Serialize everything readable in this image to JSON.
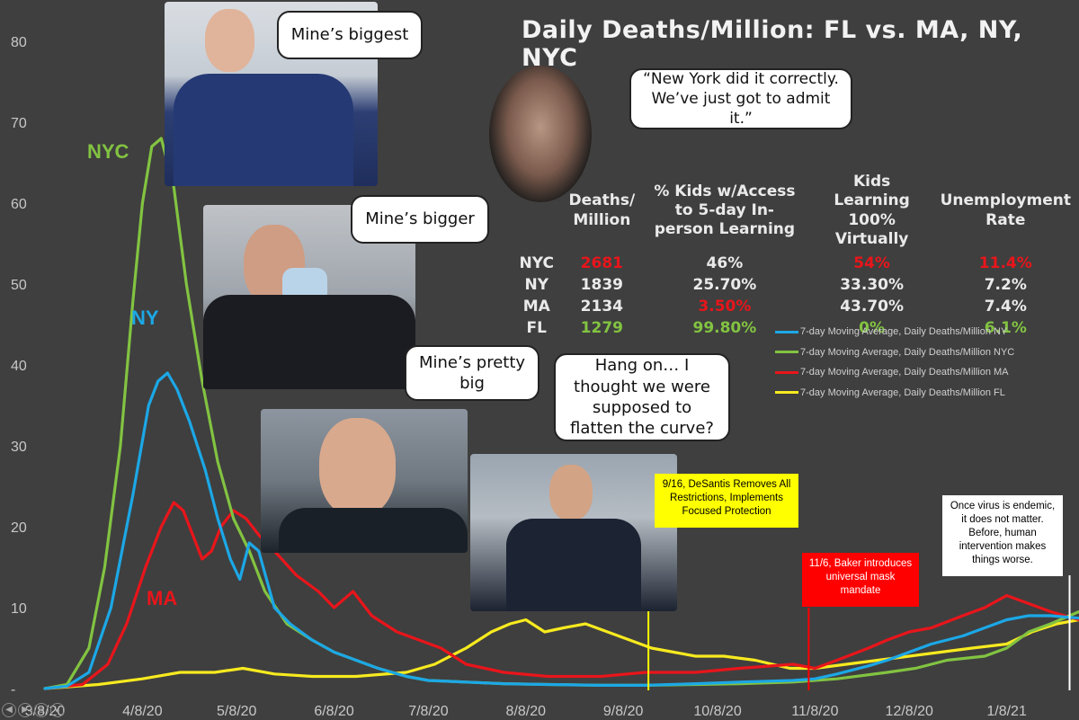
{
  "chart_data": {
    "type": "line",
    "title": "Daily Deaths/Million: FL vs. MA, NY, NYC",
    "xlabel": "",
    "ylabel": "",
    "ylim": [
      0,
      80
    ],
    "yticks": [
      0,
      10,
      20,
      30,
      40,
      50,
      60,
      70,
      80
    ],
    "ytick_labels": [
      "-",
      "10",
      "20",
      "30",
      "40",
      "50",
      "60",
      "70",
      "80"
    ],
    "xlim": [
      "2020-03-08",
      "2021-01-31"
    ],
    "xticks": [
      "2020-03-08",
      "2020-04-08",
      "2020-05-08",
      "2020-06-08",
      "2020-07-08",
      "2020-08-08",
      "2020-09-08",
      "2020-10-08",
      "2020-11-08",
      "2020-12-08",
      "2021-01-08"
    ],
    "xtick_labels": [
      "3/8/20",
      "4/8/20",
      "5/8/20",
      "6/8/20",
      "7/8/20",
      "8/8/20",
      "9/8/20",
      "10/8/20",
      "11/8/20",
      "12/8/20",
      "1/8/21"
    ],
    "grid": false,
    "legend_position": "right",
    "series": [
      {
        "name": "7-day Moving Average, Daily Deaths/Million NY",
        "label": "NY",
        "color": "#1ca7e6",
        "x": [
          "2020-03-08",
          "2020-03-15",
          "2020-03-22",
          "2020-03-29",
          "2020-04-05",
          "2020-04-10",
          "2020-04-13",
          "2020-04-16",
          "2020-04-19",
          "2020-04-23",
          "2020-04-28",
          "2020-05-02",
          "2020-05-06",
          "2020-05-09",
          "2020-05-12",
          "2020-05-15",
          "2020-05-20",
          "2020-05-25",
          "2020-06-01",
          "2020-06-08",
          "2020-06-15",
          "2020-06-22",
          "2020-07-01",
          "2020-07-08",
          "2020-07-20",
          "2020-08-01",
          "2020-08-15",
          "2020-09-01",
          "2020-09-15",
          "2020-10-01",
          "2020-10-15",
          "2020-11-01",
          "2020-11-08",
          "2020-11-15",
          "2020-11-25",
          "2020-12-01",
          "2020-12-08",
          "2020-12-15",
          "2020-12-25",
          "2021-01-01",
          "2021-01-08",
          "2021-01-15",
          "2021-01-22",
          "2021-01-31"
        ],
        "y": [
          0,
          0.3,
          2,
          10,
          24,
          35,
          38,
          39,
          37,
          33,
          27,
          21,
          16,
          13.5,
          18,
          17,
          10,
          8,
          6,
          4.5,
          3.5,
          2.5,
          1.5,
          1,
          0.8,
          0.6,
          0.5,
          0.4,
          0.4,
          0.6,
          0.8,
          1,
          1.2,
          1.8,
          2.8,
          3.5,
          4.5,
          5.5,
          6.5,
          7.5,
          8.5,
          9,
          9,
          8.7
        ]
      },
      {
        "name": "7-day Moving Average, Daily Deaths/Million NYC",
        "label": "NYC",
        "color": "#82c341",
        "x": [
          "2020-03-08",
          "2020-03-15",
          "2020-03-22",
          "2020-03-27",
          "2020-04-01",
          "2020-04-05",
          "2020-04-08",
          "2020-04-11",
          "2020-04-14",
          "2020-04-18",
          "2020-04-22",
          "2020-04-27",
          "2020-05-02",
          "2020-05-07",
          "2020-05-12",
          "2020-05-17",
          "2020-05-24",
          "2020-06-01",
          "2020-06-08",
          "2020-06-15",
          "2020-06-22",
          "2020-07-01",
          "2020-07-08",
          "2020-07-20",
          "2020-08-01",
          "2020-08-15",
          "2020-09-01",
          "2020-09-15",
          "2020-10-01",
          "2020-10-15",
          "2020-11-01",
          "2020-11-15",
          "2020-12-01",
          "2020-12-10",
          "2020-12-20",
          "2021-01-01",
          "2021-01-08",
          "2021-01-15",
          "2021-01-22",
          "2021-01-31"
        ],
        "y": [
          0,
          0.5,
          5,
          15,
          30,
          48,
          60,
          67,
          68,
          62,
          50,
          38,
          28,
          21,
          17,
          12,
          8,
          6,
          4.5,
          3.5,
          2.5,
          1.5,
          1,
          0.8,
          0.6,
          0.5,
          0.4,
          0.4,
          0.5,
          0.6,
          0.8,
          1.2,
          2,
          2.5,
          3.5,
          4,
          5,
          7,
          8,
          9.5
        ]
      },
      {
        "name": "7-day Moving Average, Daily Deaths/Million MA",
        "label": "MA",
        "color": "#e8151b",
        "x": [
          "2020-03-08",
          "2020-03-20",
          "2020-03-28",
          "2020-04-03",
          "2020-04-09",
          "2020-04-14",
          "2020-04-18",
          "2020-04-21",
          "2020-04-24",
          "2020-04-27",
          "2020-04-30",
          "2020-05-03",
          "2020-05-07",
          "2020-05-11",
          "2020-05-15",
          "2020-05-20",
          "2020-05-27",
          "2020-06-03",
          "2020-06-08",
          "2020-06-14",
          "2020-06-20",
          "2020-06-28",
          "2020-07-05",
          "2020-07-12",
          "2020-07-20",
          "2020-08-01",
          "2020-08-15",
          "2020-09-01",
          "2020-09-15",
          "2020-10-01",
          "2020-10-15",
          "2020-11-01",
          "2020-11-08",
          "2020-11-15",
          "2020-11-25",
          "2020-12-01",
          "2020-12-08",
          "2020-12-15",
          "2020-12-25",
          "2021-01-01",
          "2021-01-08",
          "2021-01-15",
          "2021-01-22",
          "2021-01-31"
        ],
        "y": [
          0,
          0.5,
          3,
          8,
          15,
          20,
          23,
          22,
          19,
          16,
          17,
          20,
          22,
          21,
          19,
          17,
          14,
          12,
          10,
          12,
          9,
          7,
          6,
          5,
          3,
          2,
          1.5,
          1.5,
          2,
          2,
          2.5,
          3,
          2.5,
          3.5,
          5,
          6,
          7,
          7.5,
          9,
          10,
          11.5,
          10.5,
          9.5,
          8.5
        ]
      },
      {
        "name": "7-day Moving Average, Daily Deaths/Million FL",
        "label": "FL",
        "color": "#f7ea1f",
        "x": [
          "2020-03-08",
          "2020-03-25",
          "2020-04-08",
          "2020-04-20",
          "2020-05-01",
          "2020-05-10",
          "2020-05-20",
          "2020-06-01",
          "2020-06-15",
          "2020-07-01",
          "2020-07-10",
          "2020-07-20",
          "2020-07-28",
          "2020-08-03",
          "2020-08-08",
          "2020-08-14",
          "2020-08-20",
          "2020-08-27",
          "2020-09-03",
          "2020-09-10",
          "2020-09-17",
          "2020-09-24",
          "2020-10-01",
          "2020-10-10",
          "2020-10-20",
          "2020-10-31",
          "2020-11-08",
          "2020-11-18",
          "2020-11-28",
          "2020-12-08",
          "2020-12-18",
          "2020-12-28",
          "2021-01-08",
          "2021-01-16",
          "2021-01-24",
          "2021-01-31"
        ],
        "y": [
          0,
          0.5,
          1.2,
          2,
          2,
          2.5,
          1.8,
          1.5,
          1.5,
          2,
          3,
          5,
          7,
          8,
          8.5,
          7,
          7.5,
          8,
          7,
          6,
          5,
          4.5,
          4,
          4,
          3.5,
          2.5,
          2.5,
          3,
          3.5,
          4,
          4.5,
          5,
          5.5,
          7,
          8,
          8.5
        ]
      }
    ],
    "series_labels_on_chart": [
      "NYC",
      "NY",
      "MA"
    ],
    "table": {
      "columns": [
        "",
        "Deaths/ Million",
        "% Kids w/Access to 5-day In-person Learning",
        "Kids Learning 100% Virtually",
        "Unemployment Rate"
      ],
      "rows": [
        {
          "label": "NYC",
          "deaths": "2681",
          "deaths_color": "#e8151b",
          "access": "46%",
          "access_color": "#eaeaea",
          "virtual": "54%",
          "virtual_color": "#e8151b",
          "unemp": "11.4%",
          "unemp_color": "#e8151b"
        },
        {
          "label": "NY",
          "deaths": "1839",
          "deaths_color": "#eaeaea",
          "access": "25.70%",
          "access_color": "#eaeaea",
          "virtual": "33.30%",
          "virtual_color": "#eaeaea",
          "unemp": "7.2%",
          "unemp_color": "#eaeaea"
        },
        {
          "label": "MA",
          "deaths": "2134",
          "deaths_color": "#eaeaea",
          "access": "3.50%",
          "access_color": "#e8151b",
          "virtual": "43.70%",
          "virtual_color": "#eaeaea",
          "unemp": "7.4%",
          "unemp_color": "#eaeaea"
        },
        {
          "label": "FL",
          "deaths": "1279",
          "deaths_color": "#82c341",
          "access": "99.80%",
          "access_color": "#82c341",
          "virtual": "0%",
          "virtual_color": "#82c341",
          "unemp": "6.1%",
          "unemp_color": "#82c341"
        }
      ]
    },
    "annotations": [
      {
        "date": "2020-09-16",
        "text": "9/16, DeSantis Removes All Restrictions, Implements Focused Protection",
        "box_color": "#ffff00",
        "text_color": "#000000"
      },
      {
        "date": "2020-11-06",
        "text": "11/6, Baker introduces universal mask mandate",
        "box_color": "#ff0000",
        "text_color": "#ffffff"
      },
      {
        "date": "2021-01-28",
        "text": "Once virus is endemic, it does not matter. Before, human intervention makes things worse.",
        "box_color": "#ffffff",
        "text_color": "#000000"
      }
    ]
  },
  "bubbles": {
    "deblasio": "Mine’s biggest",
    "cuomo": "Mine’s bigger",
    "baker": "Mine’s pretty big",
    "desantis": "Hang on… I thought we were supposed to flatten the curve?",
    "fauci": "“New York did it correctly. We’ve just got to admit it.”"
  },
  "colors": {
    "background": "#3f3f3f",
    "axis_text": "#c8c8c8",
    "ny": "#1ca7e6",
    "nyc": "#82c341",
    "ma": "#e8151b",
    "fl": "#f7ea1f"
  },
  "nav_icons": [
    "back-arrow-icon",
    "forward-arrow-icon",
    "zoom-icon",
    "navigator-icon"
  ]
}
